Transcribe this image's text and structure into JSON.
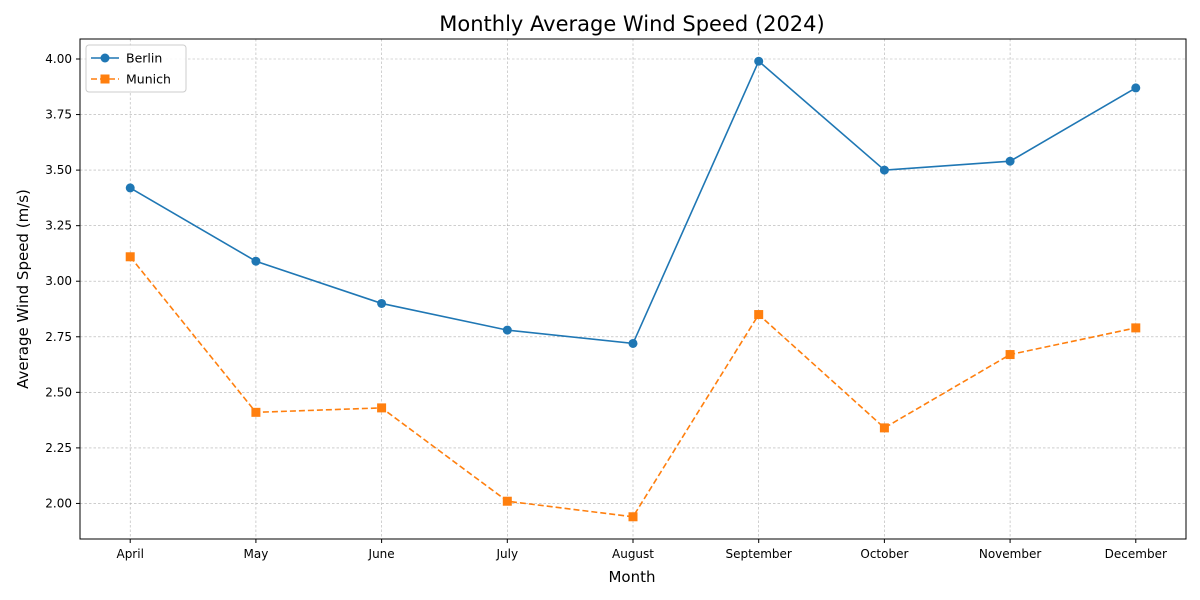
{
  "chart_data": {
    "type": "line",
    "title": "Monthly Average Wind Speed (2024)",
    "xlabel": "Month",
    "ylabel": "Average Wind Speed (m/s)",
    "categories": [
      "April",
      "May",
      "June",
      "July",
      "August",
      "September",
      "October",
      "November",
      "December"
    ],
    "ylim": [
      1.84,
      4.09
    ],
    "yticks": [
      "2.00",
      "2.25",
      "2.50",
      "2.75",
      "3.00",
      "3.25",
      "3.50",
      "3.75",
      "4.00"
    ],
    "grid": true,
    "legend_position": "top-left",
    "series": [
      {
        "name": "Berlin",
        "color": "#1f77b4",
        "marker": "circle",
        "line_style": "solid",
        "values": [
          3.42,
          3.09,
          2.9,
          2.78,
          2.72,
          3.99,
          3.5,
          3.54,
          3.87
        ]
      },
      {
        "name": "Munich",
        "color": "#ff7f0e",
        "marker": "square",
        "line_style": "dashed",
        "values": [
          3.11,
          2.41,
          2.43,
          2.01,
          1.94,
          2.85,
          2.34,
          2.67,
          2.79
        ]
      }
    ]
  }
}
